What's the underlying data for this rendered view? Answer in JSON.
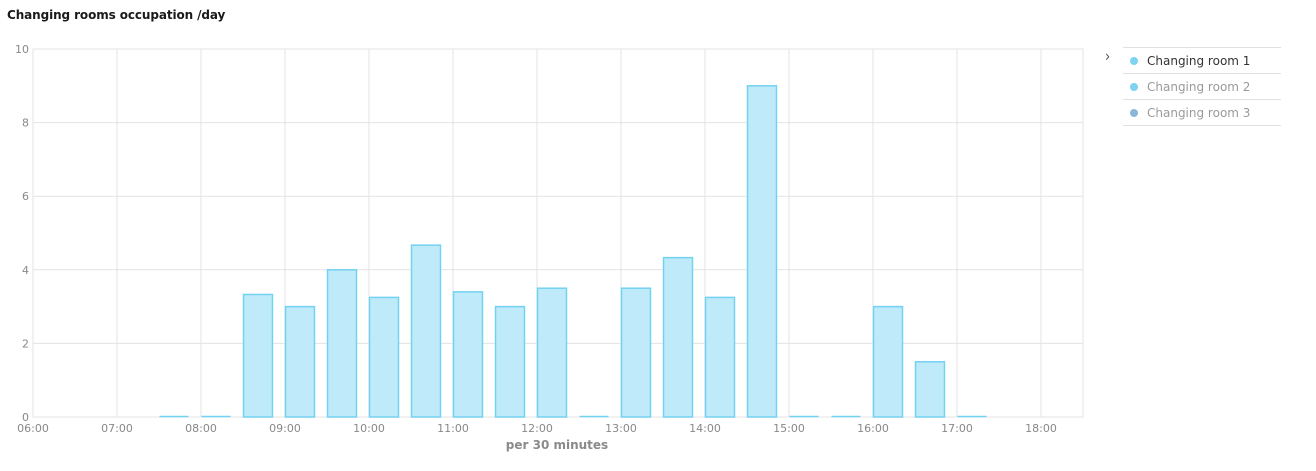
{
  "title": "Changing rooms occupation /day",
  "legend": {
    "toggle_icon": "chevron-right-icon",
    "items": [
      {
        "label": "Changing room 1",
        "color": "#7dd3f0",
        "active": true
      },
      {
        "label": "Changing room 2",
        "color": "#7dd3f0",
        "active": false
      },
      {
        "label": "Changing room 3",
        "color": "#8bb6d9",
        "active": false
      }
    ]
  },
  "chart_data": {
    "type": "bar",
    "title": "Changing rooms occupation /day",
    "xlabel": "per 30 minutes",
    "ylabel": "",
    "ylim": [
      0,
      10
    ],
    "yticks": [
      0,
      2,
      4,
      6,
      8,
      10
    ],
    "xticks": [
      "06:00",
      "07:00",
      "08:00",
      "09:00",
      "10:00",
      "11:00",
      "12:00",
      "13:00",
      "14:00",
      "15:00",
      "16:00",
      "17:00",
      "18:00"
    ],
    "grid": true,
    "bar_fill": "#bfeaf9",
    "bar_stroke": "#73d1f2",
    "series": [
      {
        "name": "Changing room 1",
        "points": [
          {
            "x": "07:30",
            "y": 0
          },
          {
            "x": "08:00",
            "y": 0
          },
          {
            "x": "08:30",
            "y": 3.33
          },
          {
            "x": "09:00",
            "y": 3.0
          },
          {
            "x": "09:30",
            "y": 4.0
          },
          {
            "x": "10:00",
            "y": 3.25
          },
          {
            "x": "10:30",
            "y": 4.67
          },
          {
            "x": "11:00",
            "y": 3.4
          },
          {
            "x": "11:30",
            "y": 3.0
          },
          {
            "x": "12:00",
            "y": 3.5
          },
          {
            "x": "12:30",
            "y": 0
          },
          {
            "x": "13:00",
            "y": 3.5
          },
          {
            "x": "13:30",
            "y": 4.33
          },
          {
            "x": "14:00",
            "y": 3.25
          },
          {
            "x": "14:30",
            "y": 9.0
          },
          {
            "x": "15:00",
            "y": 0
          },
          {
            "x": "15:30",
            "y": 0
          },
          {
            "x": "16:00",
            "y": 3.0
          },
          {
            "x": "16:30",
            "y": 1.5
          },
          {
            "x": "17:00",
            "y": 0
          }
        ]
      }
    ]
  }
}
